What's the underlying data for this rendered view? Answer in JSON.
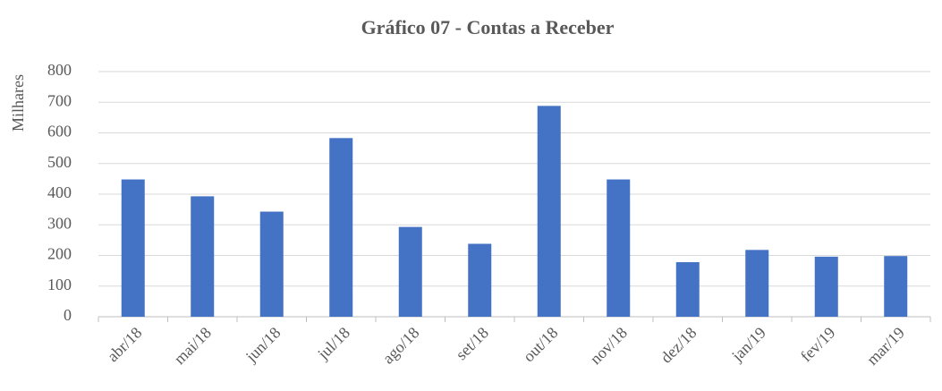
{
  "chart_data": {
    "type": "bar",
    "title": "Gráfico 07 - Contas a Receber",
    "y_label": "Milhares",
    "categories": [
      "abr/18",
      "mai/18",
      "jun/18",
      "jul/18",
      "ago/18",
      "set/18",
      "out/18",
      "nov/18",
      "dez/18",
      "jan/19",
      "fev/19",
      "mar/19"
    ],
    "values": [
      448,
      393,
      343,
      583,
      293,
      238,
      688,
      448,
      178,
      218,
      196,
      198
    ],
    "color": "#4472c4",
    "ylim": [
      0,
      800
    ],
    "yticks": [
      0,
      100,
      200,
      300,
      400,
      500,
      600,
      700,
      800
    ],
    "grid": true
  }
}
